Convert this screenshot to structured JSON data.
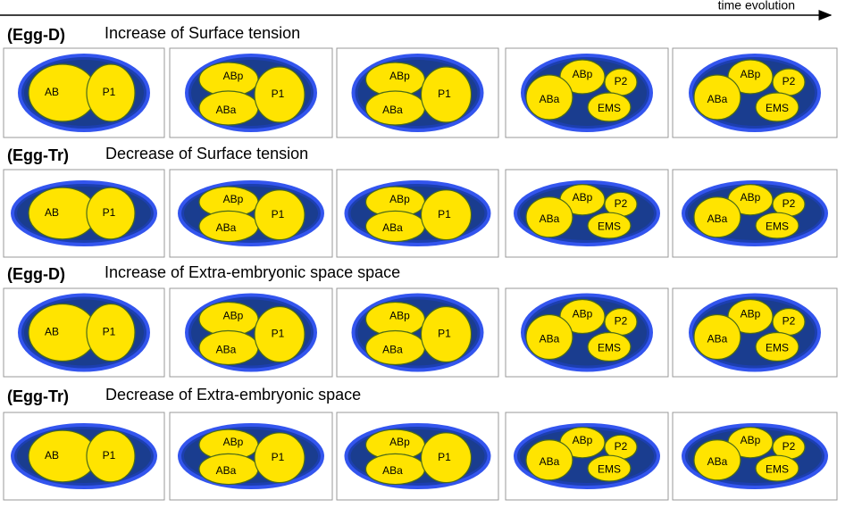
{
  "header": {
    "arrow_label": "time evolution"
  },
  "rows": [
    {
      "tag": "(Egg-D)",
      "title": "Increase of Surface tension",
      "panels": [
        {
          "cells": [
            "AB",
            "P1"
          ]
        },
        {
          "cells": [
            "ABp",
            "ABa",
            "P1"
          ]
        },
        {
          "cells": [
            "ABp",
            "ABa",
            "P1"
          ]
        },
        {
          "cells": [
            "ABp",
            "ABa",
            "P2",
            "EMS"
          ]
        },
        {
          "cells": [
            "ABp",
            "ABa",
            "P2",
            "EMS"
          ]
        }
      ]
    },
    {
      "tag": "(Egg-Tr)",
      "title": "Decrease of Surface tension",
      "panels": [
        {
          "cells": [
            "AB",
            "P1"
          ]
        },
        {
          "cells": [
            "ABp",
            "ABa",
            "P1"
          ]
        },
        {
          "cells": [
            "ABp",
            "ABa",
            "P1"
          ]
        },
        {
          "cells": [
            "ABp",
            "ABa",
            "P2",
            "EMS"
          ]
        },
        {
          "cells": [
            "ABp",
            "ABa",
            "P2",
            "EMS"
          ]
        }
      ]
    },
    {
      "tag": "(Egg-D)",
      "title": "Increase of Extra-embryonic space space",
      "panels": [
        {
          "cells": [
            "AB",
            "P1"
          ]
        },
        {
          "cells": [
            "ABp",
            "ABa",
            "P1"
          ]
        },
        {
          "cells": [
            "ABp",
            "ABa",
            "P1"
          ]
        },
        {
          "cells": [
            "ABp",
            "ABa",
            "P2",
            "EMS"
          ]
        },
        {
          "cells": [
            "ABp",
            "ABa",
            "P2",
            "EMS"
          ]
        }
      ]
    },
    {
      "tag": "(Egg-Tr)",
      "title": "Decrease of Extra-embryonic space",
      "panels": [
        {
          "cells": [
            "AB",
            "P1"
          ]
        },
        {
          "cells": [
            "ABp",
            "ABa",
            "P1"
          ]
        },
        {
          "cells": [
            "ABp",
            "ABa",
            "P1"
          ]
        },
        {
          "cells": [
            "ABp",
            "ABa",
            "P2",
            "EMS"
          ]
        },
        {
          "cells": [
            "ABp",
            "ABa",
            "P2",
            "EMS"
          ]
        }
      ]
    }
  ]
}
